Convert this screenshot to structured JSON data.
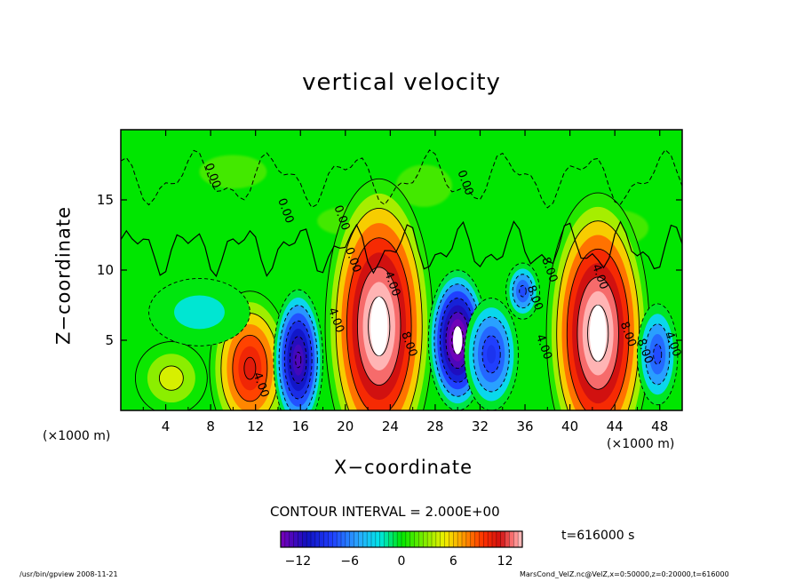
{
  "chart_data": {
    "type": "heatmap",
    "title": "vertical velocity",
    "xlabel": "X−coordinate",
    "ylabel": "Z−coordinate",
    "x_unit_left": "(×1000 m)",
    "x_unit_right": "(×1000 m)",
    "xlim": [
      0,
      50
    ],
    "ylim": [
      0,
      20
    ],
    "x_ticks": [
      "4",
      "8",
      "12",
      "16",
      "20",
      "24",
      "28",
      "32",
      "36",
      "40",
      "44",
      "48"
    ],
    "y_ticks": [
      "5",
      "10",
      "15"
    ],
    "contour_interval": "CONTOUR INTERVAL = 2.000E+00",
    "colorbar": {
      "range": [
        -14,
        14
      ],
      "ticks": [
        "−12",
        "−6",
        "0",
        "6",
        "12"
      ]
    },
    "contour_labels": [
      "0.00",
      "0.00",
      "0.00",
      "0.00",
      "0.00",
      "4.00",
      "4.00",
      "4.00",
      "4.00",
      "4.00",
      "4.00",
      "8.00",
      "8.00",
      "8.00",
      "8.00",
      "8.00"
    ],
    "cells": [
      {
        "x": 4.5,
        "z": 2.3,
        "w": 5
      },
      {
        "x": 11.5,
        "z": 3.0,
        "w": 11
      },
      {
        "x": 15.8,
        "z": 3.6,
        "w": -13
      },
      {
        "x": 23.0,
        "z": 6.0,
        "w": 15
      },
      {
        "x": 30.0,
        "z": 5.0,
        "w": -15
      },
      {
        "x": 33.0,
        "z": 4.0,
        "w": -9
      },
      {
        "x": 35.8,
        "z": 8.5,
        "w": -8
      },
      {
        "x": 42.5,
        "z": 5.5,
        "w": 15
      },
      {
        "x": 47.8,
        "z": 4.0,
        "w": -8
      },
      {
        "x": 7.0,
        "z": 7.0,
        "w": -3
      }
    ],
    "time_label": "t=616000  s",
    "colors": {
      "background": "#00ee00",
      "positive_peak": "#ffffff",
      "negative_peak": "#ffffff",
      "contour": "#000000"
    }
  },
  "footer": {
    "left": "/usr/bin/gpview   2008-11-21",
    "right": "MarsCond_VelZ.nc@VelZ,x=0:50000,z=0:20000,t=616000"
  }
}
